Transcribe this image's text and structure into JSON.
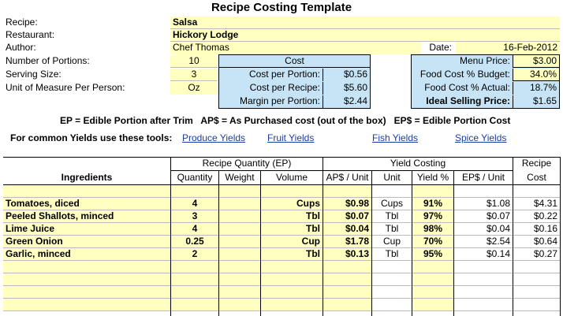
{
  "title": "Recipe Costing Template",
  "info": {
    "recipe_label": "Recipe:",
    "recipe": "Salsa",
    "restaurant_label": "Restaurant:",
    "restaurant": "Hickory Lodge",
    "author_label": "Author:",
    "author": "Chef Thomas",
    "date_label": "Date:",
    "date": "16-Feb-2012",
    "portions_label": "Number of Portions:",
    "portions": "10",
    "serving_label": "Serving Size:",
    "serving": "3",
    "uom_label": "Unit of Measure Per Person:",
    "uom": "Oz"
  },
  "cost_box": {
    "header": "Cost",
    "per_portion_label": "Cost per Portion:",
    "per_portion": "$0.56",
    "per_recipe_label": "Cost per Recipe:",
    "per_recipe": "$5.60",
    "margin_label": "Margin per Portion:",
    "margin": "$2.44"
  },
  "price_box": {
    "menu_price_label": "Menu Price:",
    "menu_price": "$3.00",
    "budget_label": "Food Cost % Budget:",
    "budget": "34.0%",
    "actual_label": "Food Cost % Actual:",
    "actual": "18.7%",
    "ideal_label": "Ideal Selling Price:",
    "ideal": "$1.65"
  },
  "legend": "EP = Edible Portion after Trim   AP$ = As Purchased cost (out of the box)   EP$ = Edible Portion Cost",
  "tools": {
    "label": "For common Yields use these tools:",
    "links": [
      "Produce Yields",
      "Fruit Yields",
      "Fish Yields",
      "Spice Yields"
    ]
  },
  "table": {
    "group_qty": "Recipe Quantity (EP)",
    "group_yield": "Yield Costing",
    "group_recipe": "Recipe",
    "headers": {
      "ingredients": "Ingredients",
      "quantity": "Quantity",
      "weight": "Weight",
      "volume": "Volume",
      "ap_unit": "AP$ / Unit",
      "unit": "Unit",
      "yield": "Yield %",
      "ep_unit": "EP$ / Unit",
      "cost": "Cost"
    },
    "rows": [
      {
        "name": "Tomatoes, diced",
        "qty": "4",
        "weight": "",
        "volume": "Cups",
        "ap": "$0.98",
        "unit": "Cups",
        "yield": "91%",
        "ep": "$1.08",
        "cost": "$4.31"
      },
      {
        "name": "Peeled Shallots, minced",
        "qty": "3",
        "weight": "",
        "volume": "Tbl",
        "ap": "$0.07",
        "unit": "Tbl",
        "yield": "97%",
        "ep": "$0.07",
        "cost": "$0.22"
      },
      {
        "name": "Lime Juice",
        "qty": "4",
        "weight": "",
        "volume": "Tbl",
        "ap": "$0.04",
        "unit": "Tbl",
        "yield": "98%",
        "ep": "$0.04",
        "cost": "$0.16"
      },
      {
        "name": "Green Onion",
        "qty": "0.25",
        "weight": "",
        "volume": "Cup",
        "ap": "$1.78",
        "unit": "Cup",
        "yield": "70%",
        "ep": "$2.54",
        "cost": "$0.64"
      },
      {
        "name": "Garlic, minced",
        "qty": "2",
        "weight": "",
        "volume": "Tbl",
        "ap": "$0.13",
        "unit": "Tbl",
        "yield": "95%",
        "ep": "$0.14",
        "cost": "$0.27"
      }
    ]
  }
}
